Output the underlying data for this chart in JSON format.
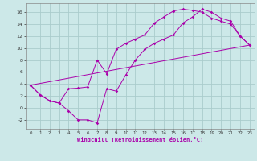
{
  "bg_color": "#cce8e8",
  "grid_color": "#aacccc",
  "line_color": "#aa00aa",
  "xlabel": "Windchill (Refroidissement éolien,°C)",
  "xlim": [
    -0.5,
    23.5
  ],
  "ylim": [
    -3.5,
    17.5
  ],
  "yticks": [
    -2,
    0,
    2,
    4,
    6,
    8,
    10,
    12,
    14,
    16
  ],
  "xticks": [
    0,
    1,
    2,
    3,
    4,
    5,
    6,
    7,
    8,
    9,
    10,
    11,
    12,
    13,
    14,
    15,
    16,
    17,
    18,
    19,
    20,
    21,
    22,
    23
  ],
  "line1_x": [
    0,
    1,
    2,
    3,
    4,
    5,
    6,
    7,
    8,
    9,
    10,
    11,
    12,
    13,
    14,
    15,
    16,
    17,
    18,
    19,
    20,
    21,
    22,
    23
  ],
  "line1_y": [
    3.8,
    2.2,
    1.2,
    0.8,
    3.2,
    3.3,
    3.5,
    8.0,
    5.7,
    9.8,
    10.8,
    11.5,
    12.2,
    14.2,
    15.2,
    16.2,
    16.5,
    16.3,
    16.0,
    15.0,
    14.5,
    14.0,
    12.0,
    10.5
  ],
  "line2_x": [
    0,
    1,
    2,
    3,
    4,
    5,
    6,
    7,
    8,
    9,
    10,
    11,
    12,
    13,
    14,
    15,
    16,
    17,
    18,
    19,
    20,
    21,
    22,
    23
  ],
  "line2_y": [
    3.8,
    2.2,
    1.2,
    0.8,
    -0.5,
    -2.0,
    -2.0,
    -2.5,
    3.2,
    2.8,
    5.5,
    8.0,
    9.8,
    10.8,
    11.5,
    12.2,
    14.2,
    15.2,
    16.5,
    16.0,
    15.0,
    14.5,
    12.0,
    10.5
  ],
  "line3_x": [
    0,
    23
  ],
  "line3_y": [
    3.8,
    10.5
  ],
  "figsize": [
    3.2,
    2.0
  ],
  "dpi": 100
}
